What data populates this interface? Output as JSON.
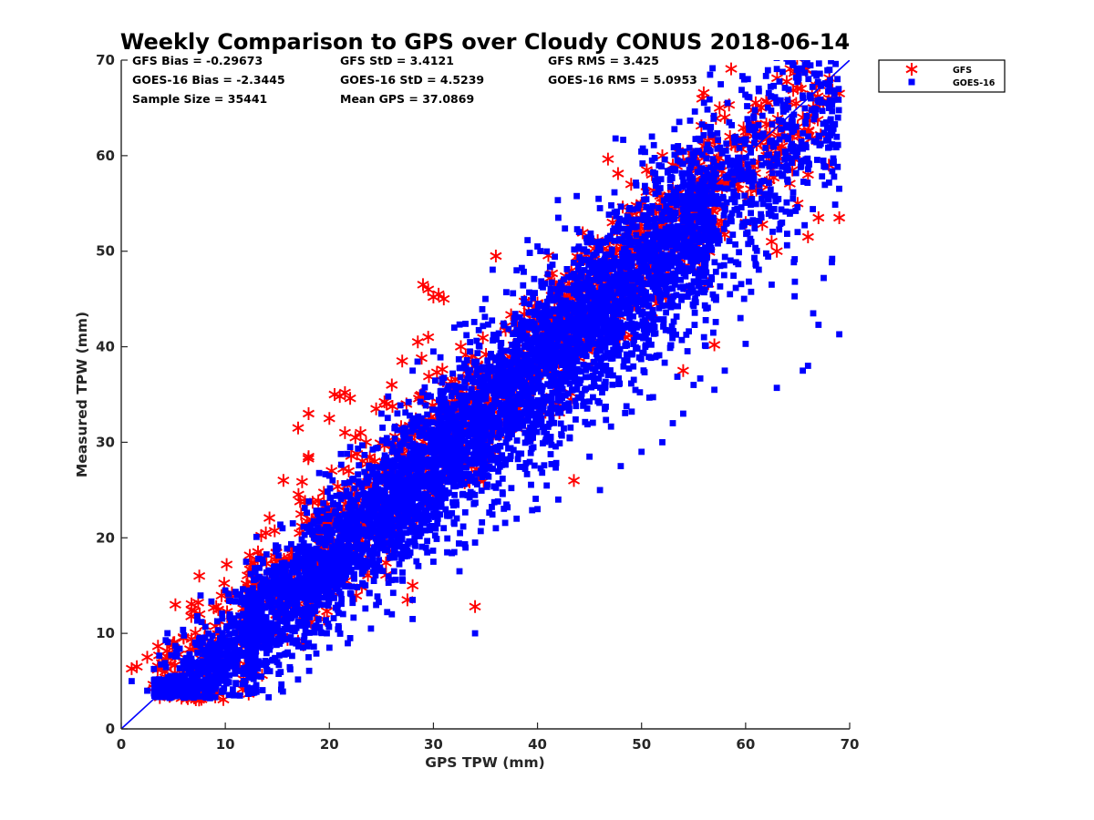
{
  "chart_data": {
    "type": "scatter",
    "title": "Weekly Comparison to GPS over Cloudy CONUS 2018-06-14",
    "xlabel": "GPS TPW (mm)",
    "ylabel": "Measured TPW (mm)",
    "xlim": [
      0,
      70
    ],
    "ylim": [
      0,
      70
    ],
    "xticks": [
      "0",
      "10",
      "20",
      "30",
      "40",
      "50",
      "60",
      "70"
    ],
    "yticks": [
      "0",
      "10",
      "20",
      "30",
      "40",
      "50",
      "60",
      "70"
    ],
    "grid": false,
    "legend_position": "outside-top-right",
    "reference_line": {
      "x": [
        0,
        70
      ],
      "y": [
        0,
        70
      ],
      "color": "#0000ff"
    },
    "stats": [
      [
        "GFS Bias = -0.29673",
        "GFS StD = 3.4121",
        "GFS RMS = 3.425"
      ],
      [
        "GOES-16 Bias = -2.3445",
        "GOES-16 StD = 4.5239",
        "GOES-16 RMS = 5.0953"
      ],
      [
        "Sample Size = 35441",
        "Mean GPS = 37.0869",
        ""
      ]
    ],
    "series": [
      {
        "name": "GFS",
        "marker": "asterisk",
        "color": "#ff0000",
        "bias": -0.29673,
        "std": 3.4121,
        "rms": 3.425,
        "outliers": [
          [
            1.0,
            6.3
          ],
          [
            1.5,
            6.5
          ],
          [
            2.5,
            7.5
          ],
          [
            3.5,
            6.2
          ],
          [
            4.5,
            7.5
          ],
          [
            5.2,
            13.0
          ],
          [
            6.0,
            9.5
          ],
          [
            7.5,
            16.0
          ],
          [
            5.0,
            9.0
          ],
          [
            17.5,
            8.8
          ],
          [
            19.5,
            11.5
          ],
          [
            18.0,
            28.5
          ],
          [
            17.0,
            31.5
          ],
          [
            18.0,
            33.0
          ],
          [
            20.0,
            32.5
          ],
          [
            20.5,
            35.0
          ],
          [
            21.0,
            34.8
          ],
          [
            21.5,
            35.2
          ],
          [
            22.0,
            34.6
          ],
          [
            21.5,
            31.0
          ],
          [
            22.5,
            30.5
          ],
          [
            23.0,
            31.0
          ],
          [
            24.5,
            33.5
          ],
          [
            25.5,
            34.0
          ],
          [
            26.0,
            36.0
          ],
          [
            27.0,
            38.5
          ],
          [
            28.5,
            40.5
          ],
          [
            29.5,
            41.0
          ],
          [
            29.0,
            46.5
          ],
          [
            29.5,
            46.0
          ],
          [
            30.5,
            45.5
          ],
          [
            31.0,
            45.0
          ],
          [
            30.0,
            45.2
          ],
          [
            36.0,
            49.5
          ],
          [
            34.0,
            12.8
          ],
          [
            27.5,
            13.5
          ],
          [
            28.0,
            15.0
          ],
          [
            43.5,
            26.0
          ],
          [
            48.5,
            52.0
          ],
          [
            49.0,
            57.0
          ],
          [
            50.5,
            58.5
          ],
          [
            51.0,
            58.0
          ],
          [
            52.0,
            60.0
          ],
          [
            53.5,
            60.5
          ],
          [
            54.0,
            59.5
          ],
          [
            55.0,
            60.0
          ],
          [
            56.0,
            61.0
          ],
          [
            57.0,
            61.5
          ],
          [
            57.5,
            65.0
          ],
          [
            58.0,
            64.0
          ],
          [
            58.5,
            62.0
          ],
          [
            59.0,
            61.0
          ],
          [
            60.0,
            62.5
          ],
          [
            61.0,
            64.5
          ],
          [
            61.5,
            65.0
          ],
          [
            62.0,
            60.0
          ],
          [
            62.5,
            58.5
          ],
          [
            63.0,
            59.5
          ],
          [
            63.5,
            61.0
          ],
          [
            64.0,
            60.0
          ],
          [
            64.5,
            62.0
          ],
          [
            65.0,
            63.0
          ],
          [
            65.5,
            64.0
          ],
          [
            66.0,
            62.5
          ],
          [
            66.5,
            65.0
          ],
          [
            67.0,
            65.5
          ],
          [
            68.0,
            66.0
          ],
          [
            69.0,
            66.5
          ],
          [
            68.0,
            59.0
          ],
          [
            66.0,
            58.0
          ],
          [
            64.5,
            58.5
          ],
          [
            67.0,
            53.5
          ],
          [
            69.0,
            53.5
          ],
          [
            66.0,
            51.5
          ],
          [
            63.0,
            50.0
          ],
          [
            57.0,
            40.2
          ],
          [
            54.0,
            37.5
          ],
          [
            50.0,
            55.0
          ],
          [
            53.0,
            59.0
          ],
          [
            59.0,
            57.0
          ],
          [
            60.5,
            56.5
          ],
          [
            61.5,
            57.0
          ],
          [
            65.0,
            55.0
          ],
          [
            62.5,
            51.0
          ],
          [
            60.0,
            53.0
          ],
          [
            58.0,
            57.0
          ],
          [
            56.5,
            56.0
          ]
        ]
      },
      {
        "name": "GOES-16",
        "marker": "square",
        "color": "#0000ff",
        "bias": -2.3445,
        "std": 4.5239,
        "rms": 5.0953,
        "outliers": [
          [
            1.0,
            5.0
          ],
          [
            2.5,
            4.0
          ],
          [
            3.5,
            3.5
          ],
          [
            5.0,
            4.5
          ],
          [
            6.0,
            3.8
          ],
          [
            8.0,
            3.5
          ],
          [
            9.0,
            4.2
          ],
          [
            11.0,
            4.8
          ],
          [
            47.5,
            61.8
          ],
          [
            51.0,
            62.0
          ],
          [
            53.5,
            61.0
          ],
          [
            54.5,
            59.5
          ],
          [
            46.0,
            54.5
          ],
          [
            42.0,
            53.5
          ],
          [
            68.5,
            57.8
          ],
          [
            69.0,
            41.3
          ],
          [
            67.5,
            47.2
          ],
          [
            66.5,
            43.5
          ],
          [
            66.0,
            38.0
          ],
          [
            65.5,
            37.5
          ],
          [
            67.0,
            42.3
          ],
          [
            63.0,
            35.7
          ],
          [
            60.0,
            40.3
          ],
          [
            58.0,
            37.5
          ],
          [
            57.0,
            35.5
          ],
          [
            56.0,
            41.0
          ],
          [
            55.0,
            36.0
          ],
          [
            54.0,
            33.0
          ],
          [
            53.0,
            32.0
          ],
          [
            52.0,
            30.0
          ],
          [
            50.0,
            29.0
          ],
          [
            48.0,
            27.5
          ],
          [
            46.0,
            25.0
          ],
          [
            45.0,
            28.5
          ],
          [
            42.0,
            24.0
          ],
          [
            40.0,
            23.0
          ],
          [
            38.0,
            22.0
          ],
          [
            36.0,
            21.0
          ],
          [
            34.0,
            19.5
          ],
          [
            32.0,
            18.5
          ],
          [
            30.0,
            17.5
          ],
          [
            28.0,
            13.5
          ],
          [
            26.0,
            12.0
          ],
          [
            24.0,
            10.5
          ],
          [
            22.0,
            9.5
          ],
          [
            20.0,
            8.5
          ],
          [
            18.0,
            7.5
          ],
          [
            34.0,
            10.0
          ],
          [
            32.5,
            16.5
          ],
          [
            28.0,
            11.5
          ],
          [
            16.0,
            8.0
          ],
          [
            14.0,
            7.0
          ],
          [
            12.0,
            5.8
          ],
          [
            24.0,
            24.3
          ],
          [
            15.5,
            21.0
          ],
          [
            12.0,
            17.5
          ],
          [
            10.0,
            14.5
          ],
          [
            20.0,
            26.5
          ],
          [
            22.0,
            29.5
          ],
          [
            25.0,
            33.0
          ],
          [
            28.0,
            37.5
          ],
          [
            30.0,
            39.5
          ],
          [
            32.0,
            42.0
          ],
          [
            35.0,
            45.0
          ],
          [
            38.0,
            48.0
          ],
          [
            40.0,
            50.5
          ],
          [
            44.0,
            52.0
          ],
          [
            60.5,
            54.0
          ],
          [
            62.0,
            56.0
          ],
          [
            64.0,
            57.5
          ],
          [
            61.0,
            48.5
          ],
          [
            62.5,
            46.5
          ],
          [
            59.5,
            43.0
          ],
          [
            58.5,
            45.5
          ],
          [
            65.0,
            52.0
          ],
          [
            63.5,
            53.0
          ]
        ]
      }
    ]
  }
}
